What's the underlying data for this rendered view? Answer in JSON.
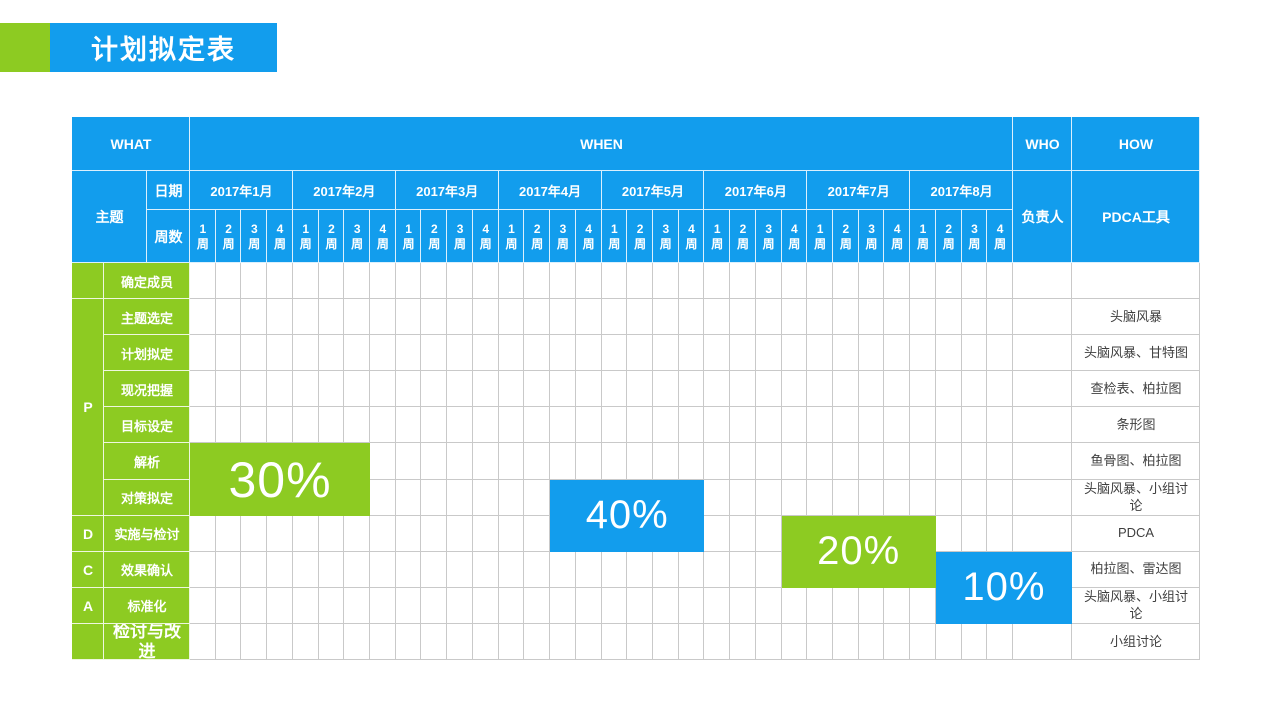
{
  "title": {
    "text": "计划拟定表"
  },
  "colors": {
    "blue": "#129ded",
    "green": "#8dcb22",
    "grid": "#c9c9c9",
    "text": "#3f3f3f"
  },
  "table": {
    "headers": {
      "what": "WHAT",
      "when": "WHEN",
      "who": "WHO",
      "how": "HOW"
    },
    "subheaders": {
      "topic": "主题",
      "date": "日期",
      "weeks": "周数",
      "owner": "负责人",
      "tools": "PDCA工具"
    },
    "months": [
      "2017年1月",
      "2017年2月",
      "2017年3月",
      "2017年4月",
      "2017年5月",
      "2017年6月",
      "2017年7月",
      "2017年8月"
    ],
    "week_labels": [
      "1周",
      "2周",
      "3周",
      "4周"
    ],
    "rows": [
      {
        "phase": "",
        "task": "确定成员",
        "tool": ""
      },
      {
        "phase": "P",
        "phase_span": 6,
        "task": "主题选定",
        "tool": "头脑风暴"
      },
      {
        "task": "计划拟定",
        "tool": "头脑风暴、甘特图"
      },
      {
        "task": "现况把握",
        "tool": "查检表、柏拉图"
      },
      {
        "task": "目标设定",
        "tool": "条形图"
      },
      {
        "task": "解析",
        "tool": "鱼骨图、柏拉图"
      },
      {
        "task": "对策拟定",
        "tool": "头脑风暴、小组讨论"
      },
      {
        "phase": "D",
        "task": "实施与检讨",
        "tool": "PDCA"
      },
      {
        "phase": "C",
        "task": "效果确认",
        "tool": "柏拉图、雷达图"
      },
      {
        "phase": "A",
        "task": "标准化",
        "tool": "头脑风暴、小组讨论"
      },
      {
        "phase": "",
        "task": "检讨与改进",
        "tool": "小组讨论",
        "large_task": true
      }
    ],
    "bars": [
      {
        "label": "30%",
        "color": "green",
        "week": 1,
        "week_span": 7,
        "row": 6,
        "row_span": 2,
        "big": true
      },
      {
        "label": "40%",
        "color": "blue",
        "week": 15,
        "week_span": 6,
        "row": 7,
        "row_span": 2
      },
      {
        "label": "20%",
        "color": "green",
        "week": 24,
        "week_span": 6,
        "row": 8,
        "row_span": 2
      },
      {
        "label": "10%",
        "color": "blue",
        "week": 30,
        "week_span": 4,
        "row": 9,
        "row_span": 2
      }
    ]
  },
  "chart_data": {
    "type": "table",
    "subtype": "gantt",
    "title": "计划拟定表",
    "columns": [
      "WHAT",
      "WHEN",
      "WHO",
      "HOW"
    ],
    "timeline_months": [
      "2017年1月",
      "2017年2月",
      "2017年3月",
      "2017年4月",
      "2017年5月",
      "2017年6月",
      "2017年7月",
      "2017年8月"
    ],
    "weeks_per_month": 4,
    "week_labels": [
      "1周",
      "2周",
      "3周",
      "4周"
    ],
    "rows": [
      {
        "phase": "",
        "task": "确定成员",
        "tool": ""
      },
      {
        "phase": "P",
        "task": "主题选定",
        "tool": "头脑风暴"
      },
      {
        "phase": "P",
        "task": "计划拟定",
        "tool": "头脑风暴、甘特图"
      },
      {
        "phase": "P",
        "task": "现况把握",
        "tool": "查检表、柏拉图"
      },
      {
        "phase": "P",
        "task": "目标设定",
        "tool": "条形图"
      },
      {
        "phase": "P",
        "task": "解析",
        "tool": "鱼骨图、柏拉图"
      },
      {
        "phase": "P",
        "task": "对策拟定",
        "tool": "头脑风暴、小组讨论"
      },
      {
        "phase": "D",
        "task": "实施与检讨",
        "tool": "PDCA"
      },
      {
        "phase": "C",
        "task": "效果确认",
        "tool": "柏拉图、雷达图"
      },
      {
        "phase": "A",
        "task": "标准化",
        "tool": "头脑风暴、小组讨论"
      },
      {
        "phase": "",
        "task": "检讨与改进",
        "tool": "小组讨论"
      }
    ],
    "bars": [
      {
        "label": "30%",
        "color": "#8dcb22",
        "tasks": [
          "解析",
          "对策拟定"
        ],
        "start": "2017年1月 1周",
        "end": "2017年2月 3周"
      },
      {
        "label": "40%",
        "color": "#129ded",
        "tasks": [
          "对策拟定",
          "实施与检讨"
        ],
        "start": "2017年4月 3周",
        "end": "2017年5月 4周"
      },
      {
        "label": "20%",
        "color": "#8dcb22",
        "tasks": [
          "实施与检讨",
          "效果确认"
        ],
        "start": "2017年6月 4周",
        "end": "2017年8月 1周"
      },
      {
        "label": "10%",
        "color": "#129ded",
        "tasks": [
          "效果确认",
          "标准化"
        ],
        "start": "2017年8月 2周",
        "end": "2017年8月 4周 (延伸至WHO列)"
      }
    ]
  }
}
